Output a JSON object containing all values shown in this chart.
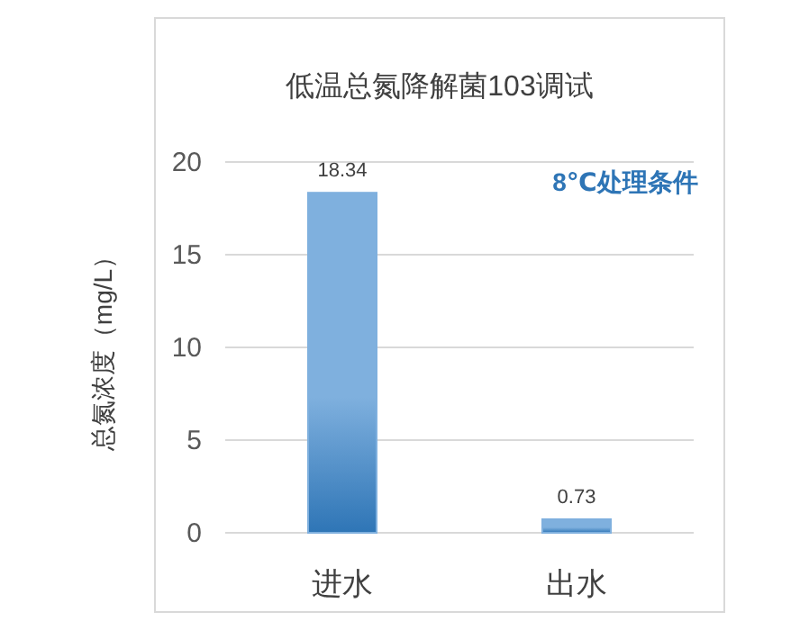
{
  "chart_data": {
    "type": "bar",
    "title": "低温总氮降解菌103调试",
    "ylabel": "总氮浓度（mg/L）",
    "categories": [
      "进水",
      "出水"
    ],
    "values": [
      18.34,
      0.73
    ],
    "color": "#7fb0de",
    "ylim": [
      0,
      20
    ],
    "yticks": [
      0,
      5,
      10,
      15,
      20
    ],
    "grid": "y",
    "data_labels": true,
    "annotations": [
      "8℃处理条件"
    ]
  }
}
